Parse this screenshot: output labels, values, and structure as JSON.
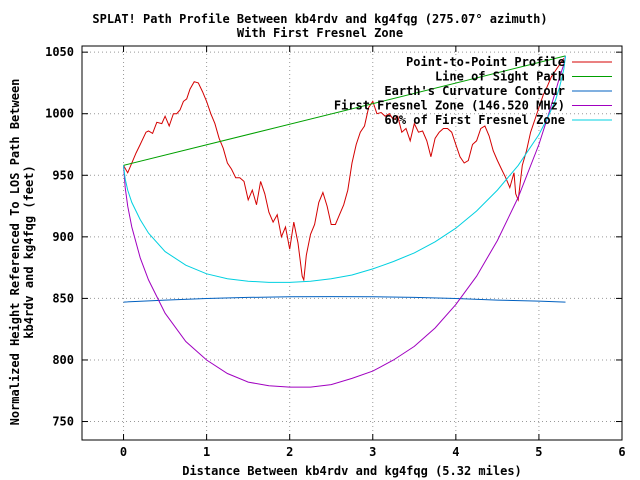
{
  "chart_data": {
    "type": "line",
    "title": "SPLAT! Path Profile Between kb4rdv and kg4fqg (275.07° azimuth)",
    "subtitle": "With First Fresnel Zone",
    "xlabel": "Distance Between kb4rdv and kg4fqg (5.32 miles)",
    "ylabel_line1": "Normalized Height Referenced To LOS Path Between",
    "ylabel_line2": "kb4rdv and kg4fqg (feet)",
    "xlim": [
      -0.5,
      6
    ],
    "ylim": [
      735,
      1055
    ],
    "xticks": [
      0,
      1,
      2,
      3,
      4,
      5,
      6
    ],
    "yticks": [
      750,
      800,
      850,
      900,
      950,
      1000,
      1050
    ],
    "grid": true,
    "legend_position": "top-right",
    "series": [
      {
        "name": "Point-to-Point Profile",
        "color": "#d40000",
        "x": [
          0,
          0.05,
          0.15,
          0.2,
          0.27,
          0.3,
          0.35,
          0.4,
          0.46,
          0.5,
          0.55,
          0.6,
          0.64,
          0.68,
          0.72,
          0.76,
          0.8,
          0.85,
          0.9,
          0.95,
          1.0,
          1.05,
          1.1,
          1.15,
          1.2,
          1.25,
          1.3,
          1.35,
          1.4,
          1.45,
          1.5,
          1.55,
          1.6,
          1.65,
          1.7,
          1.75,
          1.8,
          1.85,
          1.9,
          1.95,
          2.0,
          2.05,
          2.1,
          2.15,
          2.17,
          2.2,
          2.25,
          2.3,
          2.35,
          2.4,
          2.45,
          2.5,
          2.55,
          2.6,
          2.65,
          2.7,
          2.75,
          2.8,
          2.85,
          2.9,
          2.95,
          3.0,
          3.05,
          3.1,
          3.15,
          3.2,
          3.25,
          3.3,
          3.35,
          3.4,
          3.45,
          3.5,
          3.55,
          3.6,
          3.65,
          3.7,
          3.75,
          3.8,
          3.85,
          3.9,
          3.95,
          4.0,
          4.05,
          4.1,
          4.15,
          4.2,
          4.25,
          4.3,
          4.35,
          4.4,
          4.45,
          4.5,
          4.55,
          4.6,
          4.65,
          4.7,
          4.72,
          4.75,
          4.8,
          4.85,
          4.9,
          4.95,
          5.0,
          5.05,
          5.1,
          5.15,
          5.2,
          5.25,
          5.3
        ],
        "y": [
          958,
          952,
          968,
          975,
          985,
          986,
          984,
          993,
          992,
          998,
          990,
          1000,
          1000,
          1003,
          1010,
          1012,
          1020,
          1026,
          1025,
          1018,
          1010,
          1000,
          992,
          980,
          972,
          960,
          955,
          948,
          948,
          945,
          930,
          938,
          926,
          945,
          935,
          920,
          912,
          918,
          900,
          908,
          890,
          912,
          895,
          868,
          865,
          885,
          902,
          910,
          928,
          936,
          925,
          910,
          910,
          918,
          926,
          938,
          960,
          975,
          985,
          990,
          1005,
          1010,
          1000,
          1001,
          998,
          1000,
          995,
          998,
          985,
          988,
          978,
          992,
          985,
          986,
          978,
          965,
          980,
          985,
          988,
          988,
          985,
          975,
          965,
          960,
          962,
          975,
          978,
          988,
          990,
          982,
          970,
          962,
          955,
          948,
          940,
          952,
          935,
          930,
          958,
          970,
          985,
          995,
          1005,
          1015,
          1022,
          1030,
          1035,
          1040,
          1045
        ]
      },
      {
        "name": "Line of Sight Path",
        "color": "#00a000",
        "x": [
          0,
          5.32
        ],
        "y": [
          958,
          1047
        ]
      },
      {
        "name": "Earth's Curvature Contour",
        "color": "#0060c0",
        "x": [
          0,
          0.5,
          1.0,
          1.5,
          2.0,
          2.5,
          3.0,
          3.5,
          4.0,
          4.5,
          5.0,
          5.32
        ],
        "y": [
          847,
          848.6,
          849.9,
          850.8,
          851.3,
          851.5,
          851.3,
          850.8,
          849.9,
          848.6,
          847.8,
          847
        ]
      },
      {
        "name": "First Fresnel Zone (146.520 MHz)",
        "color": "#a000c0",
        "x": [
          0,
          0.02,
          0.05,
          0.1,
          0.2,
          0.3,
          0.5,
          0.75,
          1.0,
          1.25,
          1.5,
          1.75,
          2.0,
          2.25,
          2.5,
          2.75,
          3.0,
          3.25,
          3.5,
          3.75,
          4.0,
          4.25,
          4.5,
          4.75,
          5.0,
          5.1,
          5.2,
          5.25,
          5.3,
          5.32
        ],
        "y": [
          958,
          940,
          925,
          908,
          883,
          865,
          838,
          815,
          800,
          789,
          782,
          779,
          778,
          778,
          780,
          785,
          791,
          800,
          811,
          826,
          845,
          868,
          897,
          932,
          975,
          996,
          1018,
          1030,
          1040,
          1047
        ]
      },
      {
        "name": "60% of First Fresnel Zone",
        "color": "#00d0e0",
        "x": [
          0,
          0.02,
          0.05,
          0.1,
          0.2,
          0.3,
          0.5,
          0.75,
          1.0,
          1.25,
          1.5,
          1.75,
          2.0,
          2.25,
          2.5,
          2.75,
          3.0,
          3.25,
          3.5,
          3.75,
          4.0,
          4.25,
          4.5,
          4.75,
          5.0,
          5.1,
          5.2,
          5.25,
          5.3,
          5.32
        ],
        "y": [
          958,
          947,
          938,
          928,
          914,
          903,
          888,
          877,
          870,
          866,
          864,
          863,
          863,
          864,
          866,
          869,
          874,
          880,
          887,
          896,
          907,
          921,
          938,
          958,
          983,
          996,
          1011,
          1022,
          1036,
          1047
        ]
      }
    ]
  }
}
